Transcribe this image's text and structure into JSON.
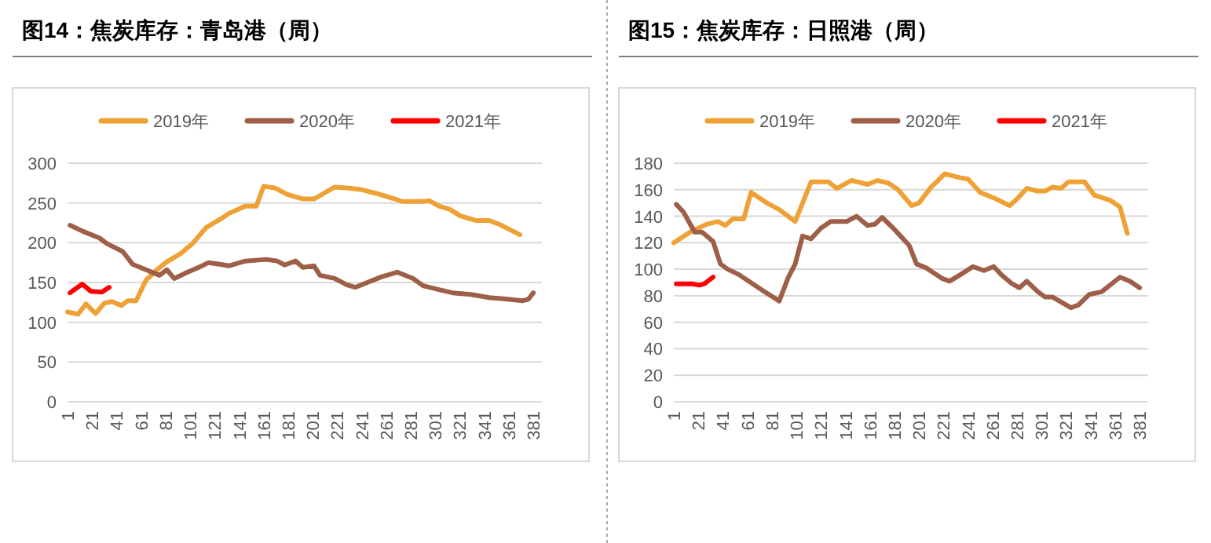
{
  "chart_data": [
    {
      "type": "line",
      "title": "图14：焦炭库存：青岛港（周）",
      "xlim": [
        1,
        388
      ],
      "xticks": [
        1,
        21,
        41,
        61,
        81,
        101,
        121,
        141,
        161,
        181,
        201,
        221,
        241,
        261,
        281,
        301,
        321,
        341,
        361,
        381
      ],
      "ylim": [
        0,
        300
      ],
      "yticks": [
        0,
        50,
        100,
        150,
        200,
        250,
        300
      ],
      "grid": "y",
      "legend": "top",
      "marker": "none",
      "line_style": "solid",
      "series": [
        {
          "name": "2019年",
          "color": "#eea236",
          "x": [
            1,
            9.5,
            16,
            24,
            31,
            37,
            45,
            50,
            57,
            65,
            74,
            82,
            93,
            103,
            114,
            125,
            133,
            146,
            155,
            161,
            170,
            180,
            193,
            202,
            210,
            219,
            229,
            240,
            253,
            264,
            274,
            291,
            296,
            304,
            313,
            321,
            334,
            345,
            355,
            370
          ],
          "values": [
            113,
            110,
            123,
            111,
            124,
            126,
            121,
            127,
            127,
            153,
            166,
            176,
            186,
            199,
            219,
            229,
            237,
            246,
            246,
            271,
            269,
            261,
            255,
            255,
            262,
            270,
            269,
            267,
            262,
            257,
            252,
            252,
            253,
            246,
            242,
            234,
            228,
            228,
            222,
            210
          ]
        },
        {
          "name": "2020年",
          "color": "#9e5f48",
          "x": [
            3,
            14,
            27,
            33,
            46,
            54,
            65,
            76,
            82,
            88,
            99,
            108,
            116,
            125,
            133,
            146,
            163,
            172,
            178,
            187,
            193,
            202,
            207,
            219,
            229,
            236,
            244,
            257,
            270,
            283,
            291,
            304,
            315,
            330,
            345,
            360,
            372,
            377,
            381
          ],
          "values": [
            222,
            214,
            206,
            199,
            189,
            173,
            166,
            159,
            166,
            155,
            163,
            169,
            175,
            173,
            171,
            177,
            179,
            177,
            172,
            177,
            169,
            171,
            159,
            155,
            147,
            144,
            149,
            157,
            163,
            155,
            146,
            141,
            137,
            135,
            131,
            129,
            127,
            129,
            137
          ]
        },
        {
          "name": "2021年",
          "color": "#ff0000",
          "x": [
            3,
            13,
            20,
            29,
            35
          ],
          "values": [
            137,
            148,
            139,
            138,
            144
          ]
        }
      ]
    },
    {
      "type": "line",
      "title": "图15：焦炭库存：日照港（周）",
      "xlim": [
        1,
        388
      ],
      "xticks": [
        1,
        21,
        41,
        61,
        81,
        101,
        121,
        141,
        161,
        181,
        201,
        221,
        241,
        261,
        281,
        301,
        321,
        341,
        361,
        381
      ],
      "ylim": [
        0,
        180
      ],
      "yticks": [
        0,
        20,
        40,
        60,
        80,
        100,
        120,
        140,
        160,
        180
      ],
      "grid": "y",
      "legend": "top",
      "marker": "none",
      "line_style": "solid",
      "series": [
        {
          "name": "2019年",
          "color": "#eea236",
          "x": [
            1,
            16,
            28,
            37,
            43,
            49,
            58,
            64,
            77,
            87,
            100,
            113,
            127,
            134,
            146,
            159,
            167,
            176,
            184,
            195,
            201,
            211,
            222,
            235,
            241,
            251,
            264,
            275,
            281,
            289,
            298,
            304,
            310,
            317,
            323,
            336,
            344,
            357,
            365,
            371
          ],
          "values": [
            120,
            129,
            134,
            136,
            133,
            138,
            138,
            158,
            150,
            145,
            136,
            166,
            166,
            161,
            167,
            164,
            167,
            165,
            160,
            148,
            150,
            162,
            172,
            169,
            168,
            158,
            153,
            148,
            153,
            161,
            159,
            159,
            162,
            161,
            166,
            166,
            156,
            152,
            147,
            127
          ]
        },
        {
          "name": "2020年",
          "color": "#9e5f48",
          "x": [
            3,
            9,
            18,
            24,
            33,
            39,
            45,
            54,
            62,
            75,
            87,
            94,
            100,
            106,
            113,
            121,
            129,
            142,
            150,
            159,
            165,
            171,
            180,
            186,
            193,
            199,
            207,
            220,
            226,
            235,
            245,
            254,
            262,
            268,
            277,
            283,
            289,
            298,
            304,
            310,
            325,
            331,
            340,
            350,
            365,
            373,
            381
          ],
          "values": [
            149,
            143,
            128,
            128,
            121,
            104,
            100,
            96,
            91,
            83,
            76,
            93,
            104,
            125,
            123,
            131,
            136,
            136,
            140,
            133,
            134,
            139,
            131,
            125,
            118,
            104,
            101,
            93,
            91,
            96,
            102,
            99,
            102,
            96,
            89,
            86,
            91,
            83,
            79,
            79,
            71,
            73,
            81,
            83,
            94,
            91,
            86
          ]
        },
        {
          "name": "2021年",
          "color": "#ff0000",
          "x": [
            3,
            16,
            22,
            26,
            33
          ],
          "values": [
            89,
            89,
            88,
            89,
            94
          ]
        }
      ]
    }
  ]
}
